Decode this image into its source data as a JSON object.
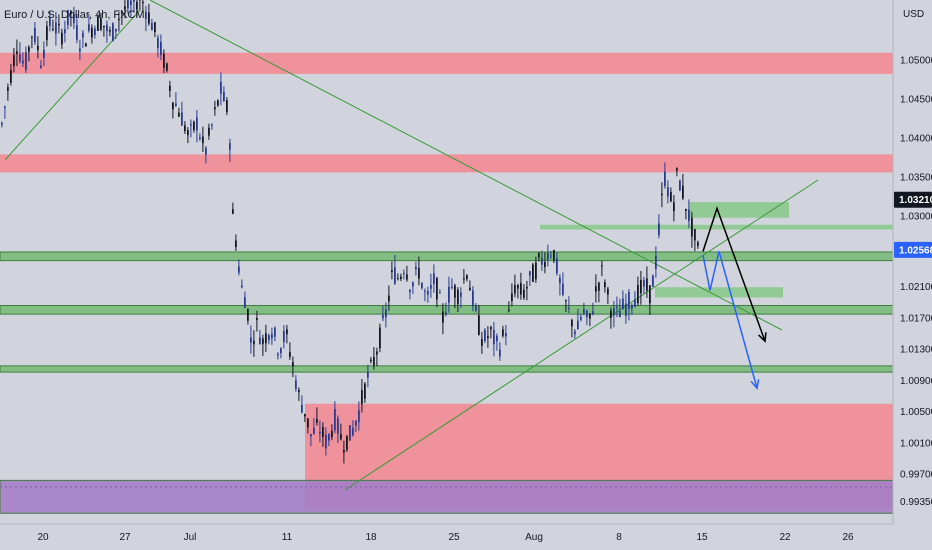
{
  "header": {
    "symbol_title": "Euro / U.S. Dollar, 4h, FXCM"
  },
  "chart_data": {
    "type": "candlestick",
    "title": "Euro / U.S. Dollar, 4h, FXCM",
    "currency_label": "USD",
    "x_tick_labels": [
      "20",
      "27",
      "Jul",
      "11",
      "18",
      "25",
      "Aug",
      "8",
      "15",
      "22",
      "26"
    ],
    "y_tick_labels": [
      "1.05000",
      "1.04500",
      "1.04000",
      "1.03500",
      "1.03000",
      "1.02100",
      "1.01700",
      "1.01300",
      "1.00900",
      "1.00500",
      "1.00100",
      "0.99700",
      "0.99350"
    ],
    "y_range": [
      0.9905,
      1.0579
    ],
    "price_badges": [
      {
        "label": "1.03210",
        "value": 1.0321,
        "color": "#131722"
      },
      {
        "label": "1.02568",
        "value": 1.02568,
        "color": "#2962ff"
      }
    ],
    "close_path": [
      [
        0,
        1.041
      ],
      [
        8,
        1.047
      ],
      [
        16,
        1.052
      ],
      [
        24,
        1.049
      ],
      [
        32,
        1.054
      ],
      [
        40,
        1.05
      ],
      [
        50,
        1.055
      ],
      [
        60,
        1.053
      ],
      [
        70,
        1.056
      ],
      [
        80,
        1.052
      ],
      [
        90,
        1.054
      ],
      [
        100,
        1.055
      ],
      [
        110,
        1.053
      ],
      [
        120,
        1.056
      ],
      [
        130,
        1.057
      ],
      [
        140,
        1.058
      ],
      [
        150,
        1.055
      ],
      [
        158,
        1.052
      ],
      [
        165,
        1.049
      ],
      [
        172,
        1.045
      ],
      [
        180,
        1.043
      ],
      [
        188,
        1.04
      ],
      [
        196,
        1.042
      ],
      [
        204,
        1.038
      ],
      [
        212,
        1.042
      ],
      [
        220,
        1.046
      ],
      [
        228,
        1.043
      ],
      [
        232,
        1.03
      ],
      [
        236,
        1.026
      ],
      [
        240,
        1.021
      ],
      [
        246,
        1.019
      ],
      [
        250,
        1.014
      ],
      [
        256,
        1.016
      ],
      [
        262,
        1.014
      ],
      [
        270,
        1.016
      ],
      [
        278,
        1.013
      ],
      [
        285,
        1.015
      ],
      [
        292,
        1.011
      ],
      [
        298,
        1.007
      ],
      [
        304,
        1.005
      ],
      [
        310,
        1.002
      ],
      [
        318,
        1.003
      ],
      [
        326,
        1.001
      ],
      [
        334,
        1.004
      ],
      [
        342,
        1.001
      ],
      [
        350,
        1.002
      ],
      [
        358,
        1.005
      ],
      [
        366,
        1.009
      ],
      [
        372,
        1.011
      ],
      [
        378,
        1.014
      ],
      [
        386,
        1.018
      ],
      [
        392,
        1.023
      ],
      [
        398,
        1.022
      ],
      [
        404,
        1.024
      ],
      [
        410,
        1.021
      ],
      [
        418,
        1.023
      ],
      [
        426,
        1.019
      ],
      [
        434,
        1.022
      ],
      [
        442,
        1.017
      ],
      [
        450,
        1.021
      ],
      [
        458,
        1.02
      ],
      [
        466,
        1.023
      ],
      [
        474,
        1.018
      ],
      [
        482,
        1.014
      ],
      [
        490,
        1.015
      ],
      [
        498,
        1.013
      ],
      [
        506,
        1.016
      ],
      [
        514,
        1.021
      ],
      [
        522,
        1.02
      ],
      [
        530,
        1.022
      ],
      [
        538,
        1.024
      ],
      [
        546,
        1.025
      ],
      [
        552,
        1.026
      ],
      [
        558,
        1.022
      ],
      [
        564,
        1.019
      ],
      [
        570,
        1.017
      ],
      [
        576,
        1.015
      ],
      [
        582,
        1.018
      ],
      [
        588,
        1.016
      ],
      [
        596,
        1.021
      ],
      [
        602,
        1.023
      ],
      [
        608,
        1.019
      ],
      [
        614,
        1.017
      ],
      [
        620,
        1.018
      ],
      [
        628,
        1.019
      ],
      [
        636,
        1.02
      ],
      [
        644,
        1.021
      ],
      [
        650,
        1.02
      ],
      [
        656,
        1.025
      ],
      [
        660,
        1.031
      ],
      [
        664,
        1.035
      ],
      [
        668,
        1.033
      ],
      [
        672,
        1.031
      ],
      [
        676,
        1.035
      ],
      [
        680,
        1.034
      ],
      [
        686,
        1.031
      ],
      [
        692,
        1.028
      ],
      [
        698,
        1.025
      ]
    ],
    "zones": [
      {
        "kind": "resistance",
        "from": 1.0482,
        "to": 1.0509,
        "color": "#f28c95"
      },
      {
        "kind": "resistance",
        "from": 1.0356,
        "to": 1.0379,
        "color": "#f28c95"
      },
      {
        "kind": "demand",
        "from": 0.9926,
        "to": 1.006,
        "color": "#f28c95"
      },
      {
        "kind": "support",
        "from": 0.992,
        "to": 0.9962,
        "color": "#a580c8"
      },
      {
        "kind": "support",
        "from": 1.0247,
        "to": 1.0258,
        "color": "#7bbb7c"
      },
      {
        "kind": "support",
        "from": 1.0176,
        "to": 1.0187,
        "color": "#7bbb7c"
      },
      {
        "kind": "support",
        "from": 1.0112,
        "to": 1.012,
        "color": "#7bbb7c"
      },
      {
        "kind": "supply",
        "from": 1.0298,
        "to": 1.0318,
        "color": "#8cc98e"
      },
      {
        "kind": "level",
        "from": 1.0283,
        "to": 1.0289,
        "color": "#8cc98e"
      },
      {
        "kind": "level",
        "from": 1.0196,
        "to": 1.0209,
        "color": "#8cc98e"
      }
    ],
    "projections": [
      {
        "name": "black",
        "color": "#000000",
        "points": [
          [
            703,
            1.0255
          ],
          [
            717,
            1.031
          ],
          [
            765,
            1.014
          ]
        ]
      },
      {
        "name": "blue",
        "color": "#2962ff",
        "points": [
          [
            703,
            1.025
          ],
          [
            710,
            1.0205
          ],
          [
            719,
            1.0255
          ],
          [
            757,
            1.008
          ]
        ]
      }
    ],
    "grid": true
  }
}
